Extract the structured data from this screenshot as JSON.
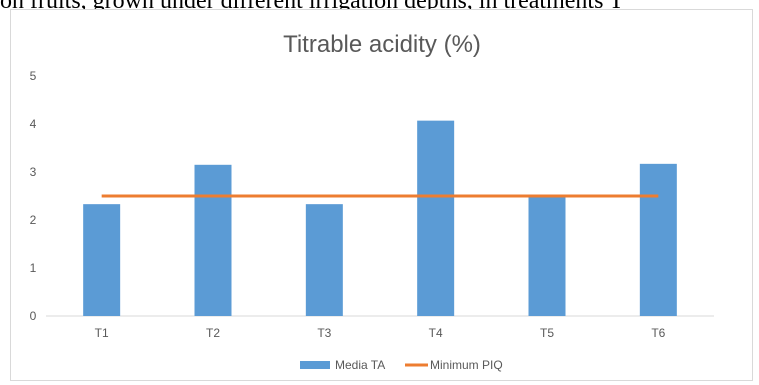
{
  "caption": "on fruits, grown under different irrigation depths, in treatments T",
  "chart_data": {
    "type": "bar",
    "title": "Titrable acidity (%)",
    "categories": [
      "T1",
      "T2",
      "T3",
      "T4",
      "T5",
      "T6"
    ],
    "series": [
      {
        "name": "Media TA",
        "kind": "bar",
        "color": "#5b9bd5",
        "values": [
          2.33,
          3.15,
          2.33,
          4.07,
          2.5,
          3.17
        ]
      },
      {
        "name": "Minimum PIQ",
        "kind": "line",
        "color": "#ed7d31",
        "values": [
          2.5,
          2.5,
          2.5,
          2.5,
          2.5,
          2.5
        ]
      }
    ],
    "ylim": [
      0,
      5
    ],
    "yticks": [
      0,
      1,
      2,
      3,
      4,
      5
    ],
    "grid": false,
    "legend": "bottom"
  }
}
